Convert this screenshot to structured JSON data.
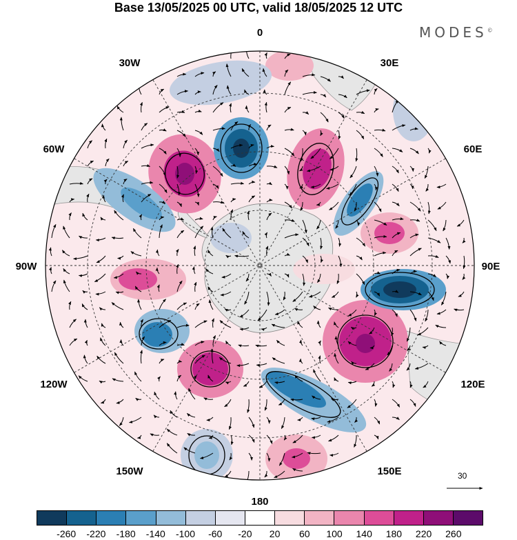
{
  "title": "Base 13/05/2025 00 UTC, valid 18/05/2025 12 UTC",
  "logo": "MODES",
  "logo_mark": "©",
  "map": {
    "projection": "south-polar-stereographic",
    "longitude_labels": {
      "top": "0",
      "bottom": "180",
      "left": "90W",
      "right": "90E",
      "upper_left_1": "30W",
      "upper_left_2": "60W",
      "lower_left_1": "120W",
      "lower_left_2": "150W",
      "upper_right_1": "30E",
      "upper_right_2": "60E",
      "lower_right_1": "120E",
      "lower_right_2": "150E"
    },
    "reference_vector": "30"
  },
  "colorbar": {
    "ticks": [
      "-260",
      "-220",
      "-180",
      "-140",
      "-100",
      "-60",
      "-20",
      "20",
      "60",
      "100",
      "140",
      "180",
      "220",
      "260"
    ],
    "colors": [
      "#103a5c",
      "#15628f",
      "#2b7fb4",
      "#5a9fcb",
      "#93bcd9",
      "#c4cfe2",
      "#e5e6f0",
      "#ffffff",
      "#f7dce0",
      "#f2b4c4",
      "#ea86ad",
      "#dd4d98",
      "#c0218a",
      "#8f0f78",
      "#5c0b6a"
    ]
  },
  "colors": {
    "positive": "#dd4d98",
    "negative": "#2b7fb4",
    "land": "#e6e6e6"
  }
}
